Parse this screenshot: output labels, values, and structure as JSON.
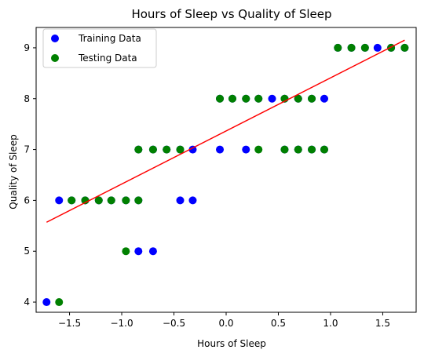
{
  "chart_data": {
    "type": "scatter",
    "title": "Hours of Sleep vs Quality of Sleep",
    "xlabel": "Hours of Sleep",
    "ylabel": "Quality of Sleep",
    "xlim": [
      -1.82,
      1.82
    ],
    "ylim": [
      3.8,
      9.4
    ],
    "xticks": [
      {
        "value": -1.5,
        "label": "−1.5"
      },
      {
        "value": -1.0,
        "label": "−1.0"
      },
      {
        "value": -0.5,
        "label": "−0.5"
      },
      {
        "value": 0.0,
        "label": "0.0"
      },
      {
        "value": 0.5,
        "label": "0.5"
      },
      {
        "value": 1.0,
        "label": "1.0"
      },
      {
        "value": 1.5,
        "label": "1.5"
      }
    ],
    "yticks": [
      {
        "value": 4,
        "label": "4"
      },
      {
        "value": 5,
        "label": "5"
      },
      {
        "value": 6,
        "label": "6"
      },
      {
        "value": 7,
        "label": "7"
      },
      {
        "value": 8,
        "label": "8"
      },
      {
        "value": 9,
        "label": "9"
      }
    ],
    "grid": false,
    "legend_position": "top-left",
    "series": [
      {
        "name": "Training Data",
        "kind": "scatter",
        "color": "#0000ff",
        "points": [
          [
            -1.72,
            4
          ],
          [
            -1.6,
            6
          ],
          [
            -1.48,
            6
          ],
          [
            -1.35,
            6
          ],
          [
            -1.22,
            6
          ],
          [
            -1.1,
            6
          ],
          [
            -0.96,
            6
          ],
          [
            -0.84,
            6
          ],
          [
            -0.44,
            6
          ],
          [
            -0.32,
            6
          ],
          [
            -0.84,
            5
          ],
          [
            -0.7,
            5
          ],
          [
            -0.84,
            7
          ],
          [
            -0.7,
            7
          ],
          [
            -0.57,
            7
          ],
          [
            -0.44,
            7
          ],
          [
            -0.32,
            7
          ],
          [
            -0.06,
            7
          ],
          [
            0.19,
            7
          ],
          [
            0.56,
            7
          ],
          [
            0.69,
            7
          ],
          [
            0.82,
            7
          ],
          [
            0.94,
            7
          ],
          [
            -0.06,
            8
          ],
          [
            0.06,
            8
          ],
          [
            0.19,
            8
          ],
          [
            0.31,
            8
          ],
          [
            0.44,
            8
          ],
          [
            0.56,
            8
          ],
          [
            0.69,
            8
          ],
          [
            0.82,
            8
          ],
          [
            0.94,
            8
          ],
          [
            1.07,
            9
          ],
          [
            1.2,
            9
          ],
          [
            1.33,
            9
          ],
          [
            1.45,
            9
          ],
          [
            1.58,
            9
          ],
          [
            1.71,
            9
          ]
        ]
      },
      {
        "name": "Testing Data",
        "kind": "scatter",
        "color": "#008000",
        "points": [
          [
            -1.6,
            4
          ],
          [
            -1.48,
            6
          ],
          [
            -1.35,
            6
          ],
          [
            -1.22,
            6
          ],
          [
            -1.1,
            6
          ],
          [
            -0.96,
            6
          ],
          [
            -0.84,
            6
          ],
          [
            -0.96,
            5
          ],
          [
            -0.84,
            7
          ],
          [
            -0.7,
            7
          ],
          [
            -0.57,
            7
          ],
          [
            -0.44,
            7
          ],
          [
            0.31,
            7
          ],
          [
            0.56,
            7
          ],
          [
            0.69,
            7
          ],
          [
            0.82,
            7
          ],
          [
            0.94,
            7
          ],
          [
            -0.06,
            8
          ],
          [
            0.06,
            8
          ],
          [
            0.19,
            8
          ],
          [
            0.31,
            8
          ],
          [
            0.56,
            8
          ],
          [
            0.69,
            8
          ],
          [
            0.82,
            8
          ],
          [
            1.07,
            9
          ],
          [
            1.2,
            9
          ],
          [
            1.33,
            9
          ],
          [
            1.58,
            9
          ],
          [
            1.71,
            9
          ]
        ]
      },
      {
        "kind": "line",
        "color": "#ff0000",
        "points": [
          [
            -1.72,
            5.57
          ],
          [
            1.71,
            9.15
          ]
        ]
      }
    ]
  }
}
